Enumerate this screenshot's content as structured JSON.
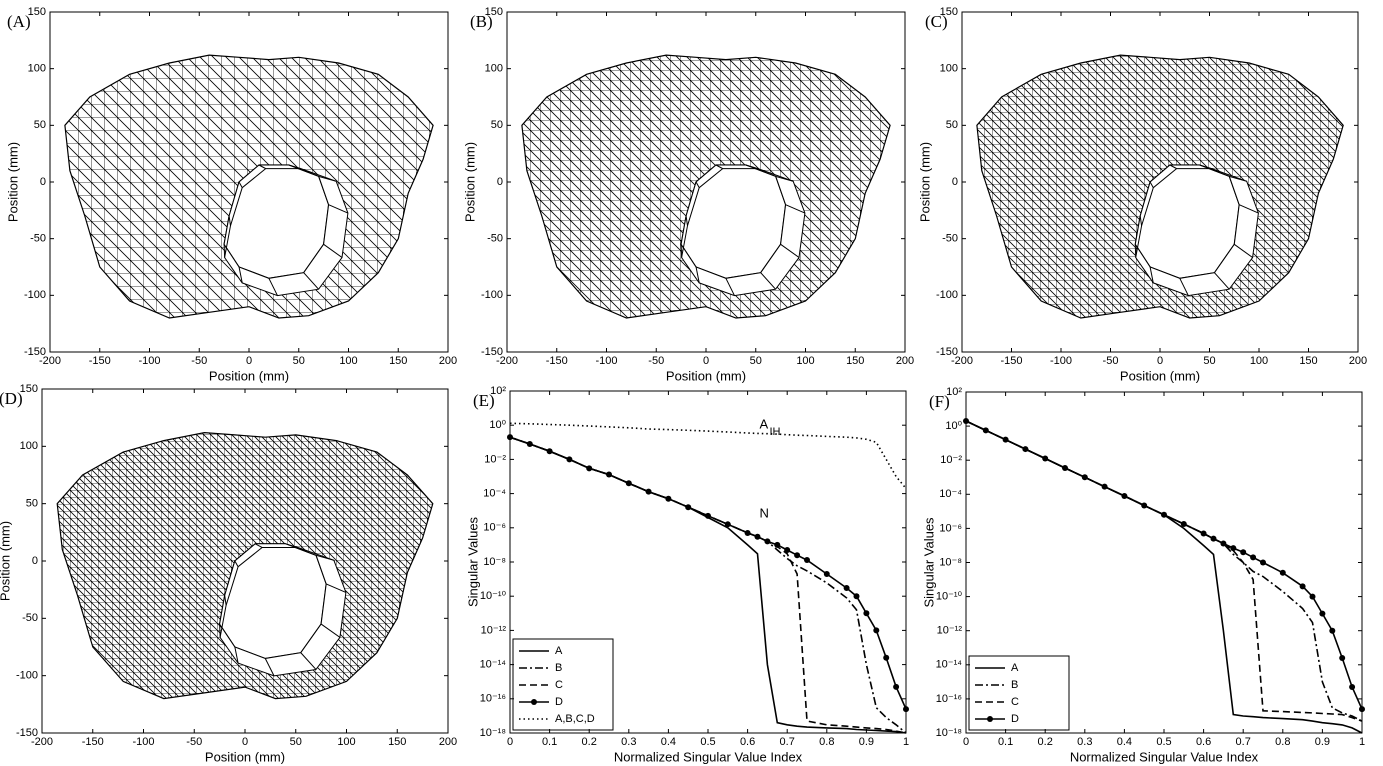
{
  "chart_data": [
    {
      "type": "mesh",
      "panel_label": "(A)",
      "xlabel": "Position (mm)",
      "ylabel": "Position (mm)",
      "xlim": [
        -200,
        200
      ],
      "ylim": [
        -150,
        150
      ],
      "xticks": [
        -200,
        -150,
        -100,
        -50,
        0,
        50,
        100,
        150,
        200
      ],
      "yticks": [
        -150,
        -100,
        -50,
        0,
        50,
        100,
        150
      ]
    },
    {
      "type": "mesh",
      "panel_label": "(B)",
      "xlabel": "Position (mm)",
      "ylabel": "Position (mm)",
      "xlim": [
        -200,
        200
      ],
      "ylim": [
        -150,
        150
      ],
      "xticks": [
        -200,
        -150,
        -100,
        -50,
        0,
        50,
        100,
        150,
        200
      ],
      "yticks": [
        -150,
        -100,
        -50,
        0,
        50,
        100,
        150
      ]
    },
    {
      "type": "mesh",
      "panel_label": "(C)",
      "xlabel": "Position (mm)",
      "ylabel": "Position (mm)",
      "xlim": [
        -200,
        200
      ],
      "ylim": [
        -150,
        150
      ],
      "xticks": [
        -200,
        -150,
        -100,
        -50,
        0,
        50,
        100,
        150,
        200
      ],
      "yticks": [
        -150,
        -100,
        -50,
        0,
        50,
        100,
        150
      ]
    },
    {
      "type": "mesh",
      "panel_label": "(D)",
      "xlabel": "Position (mm)",
      "ylabel": "Position (mm)",
      "xlim": [
        -200,
        200
      ],
      "ylim": [
        -150,
        150
      ],
      "xticks": [
        -200,
        -150,
        -100,
        -50,
        0,
        50,
        100,
        150,
        200
      ],
      "yticks": [
        -150,
        -100,
        -50,
        0,
        50,
        100,
        150
      ]
    },
    {
      "type": "line",
      "panel_label": "(E)",
      "xlabel": "Normalized Singular Value Index",
      "ylabel": "Singular Values",
      "log_y": true,
      "legend": "lower left",
      "xlim": [
        0,
        1
      ],
      "ylim": [
        1e-18,
        100
      ],
      "xticks": [
        0,
        0.1,
        0.2,
        0.3,
        0.4,
        0.5,
        0.6,
        0.7,
        0.8,
        0.9,
        1
      ],
      "yticks": [
        {
          "value": 1e-18,
          "label": "10⁻¹⁸"
        },
        {
          "value": 1e-16,
          "label": "10⁻¹⁶"
        },
        {
          "value": 1e-14,
          "label": "10⁻¹⁴"
        },
        {
          "value": 1e-12,
          "label": "10⁻¹²"
        },
        {
          "value": 1e-10,
          "label": "10⁻¹⁰"
        },
        {
          "value": 1e-08,
          "label": "10⁻⁸"
        },
        {
          "value": 1e-06,
          "label": "10⁻⁶"
        },
        {
          "value": 0.0001,
          "label": "10⁻⁴"
        },
        {
          "value": 0.01,
          "label": "10⁻²"
        },
        {
          "value": 1,
          "label": "10⁰"
        },
        {
          "value": 100,
          "label": "10²"
        }
      ],
      "annotations": [
        {
          "text": "A",
          "subscript": "IH"
        },
        {
          "text": "N"
        }
      ],
      "x": [
        0,
        0.05,
        0.1,
        0.15,
        0.2,
        0.25,
        0.3,
        0.35,
        0.4,
        0.45,
        0.5,
        0.55,
        0.6,
        0.625,
        0.65,
        0.675,
        0.7,
        0.725,
        0.75,
        0.8,
        0.85,
        0.875,
        0.9,
        0.925,
        0.95,
        0.975,
        1
      ],
      "series": [
        {
          "name": "A",
          "color": "#000000",
          "dash": "solid",
          "values": [
            0.2,
            0.08,
            0.03,
            0.01,
            0.003,
            0.0013,
            0.0004,
            0.00013,
            5e-05,
            1.6e-05,
            4e-06,
            1e-06,
            1e-07,
            3e-08,
            1e-14,
            4e-18,
            3e-18,
            2.5e-18,
            2.2e-18,
            2e-18,
            1.8e-18,
            1.6e-18,
            1.5e-18,
            1.4e-18,
            1.3e-18,
            1.2e-18,
            1e-18
          ]
        },
        {
          "name": "B",
          "color": "#000000",
          "dash": "dashdot",
          "values": [
            0.2,
            0.08,
            0.03,
            0.01,
            0.003,
            0.0013,
            0.0004,
            0.00013,
            5e-05,
            1.6e-05,
            5e-06,
            1.6e-06,
            5e-07,
            3e-07,
            1.6e-07,
            5e-08,
            1.6e-08,
            6e-09,
            3e-09,
            6e-10,
            8e-11,
            1.6e-11,
            1e-14,
            3e-17,
            8e-18,
            3e-18,
            1e-18
          ]
        },
        {
          "name": "C",
          "color": "#000000",
          "dash": "dashed",
          "values": [
            0.2,
            0.08,
            0.03,
            0.01,
            0.003,
            0.0013,
            0.0004,
            0.00013,
            5e-05,
            1.6e-05,
            5e-06,
            1.6e-06,
            5e-07,
            3e-07,
            1.6e-07,
            8e-08,
            3e-08,
            2e-09,
            5e-18,
            3e-18,
            2.5e-18,
            2.2e-18,
            2e-18,
            1.8e-18,
            1.6e-18,
            1.3e-18,
            1e-18
          ]
        },
        {
          "name": "D",
          "color": "#000000",
          "dash": "solid",
          "marker": "circle",
          "values": [
            0.2,
            0.08,
            0.03,
            0.01,
            0.003,
            0.0013,
            0.0004,
            0.00013,
            5e-05,
            1.6e-05,
            5e-06,
            1.6e-06,
            5e-07,
            3e-07,
            1.6e-07,
            1e-07,
            5e-08,
            2.5e-08,
            1.3e-08,
            2e-09,
            3e-10,
            1e-10,
            1e-11,
            1e-12,
            2.5e-14,
            5e-16,
            2.5e-17
          ]
        },
        {
          "name": "A,B,C,D",
          "color": "#000000",
          "dash": "dotted",
          "values": [
            1.3,
            1.2,
            1.1,
            1,
            0.9,
            0.8,
            0.7,
            0.6,
            0.55,
            0.5,
            0.45,
            0.4,
            0.35,
            0.33,
            0.32,
            0.3,
            0.28,
            0.26,
            0.25,
            0.22,
            0.2,
            0.18,
            0.15,
            0.1,
            0.01,
            0.001,
            0.0002
          ]
        }
      ]
    },
    {
      "type": "line",
      "panel_label": "(F)",
      "xlabel": "Normalized Singular Value Index",
      "ylabel": "Singular Values",
      "log_y": true,
      "legend": "lower left",
      "xlim": [
        0,
        1
      ],
      "ylim": [
        1e-18,
        100
      ],
      "xticks": [
        0,
        0.1,
        0.2,
        0.3,
        0.4,
        0.5,
        0.6,
        0.7,
        0.8,
        0.9,
        1
      ],
      "yticks": [
        {
          "value": 1e-18,
          "label": "10⁻¹⁸"
        },
        {
          "value": 1e-16,
          "label": "10⁻¹⁶"
        },
        {
          "value": 1e-14,
          "label": "10⁻¹⁴"
        },
        {
          "value": 1e-12,
          "label": "10⁻¹²"
        },
        {
          "value": 1e-10,
          "label": "10⁻¹⁰"
        },
        {
          "value": 1e-08,
          "label": "10⁻⁸"
        },
        {
          "value": 1e-06,
          "label": "10⁻⁶"
        },
        {
          "value": 0.0001,
          "label": "10⁻⁴"
        },
        {
          "value": 0.01,
          "label": "10⁻²"
        },
        {
          "value": 1,
          "label": "10⁰"
        },
        {
          "value": 100,
          "label": "10²"
        }
      ],
      "x": [
        0,
        0.05,
        0.1,
        0.15,
        0.2,
        0.25,
        0.3,
        0.35,
        0.4,
        0.45,
        0.5,
        0.55,
        0.6,
        0.625,
        0.65,
        0.675,
        0.7,
        0.725,
        0.75,
        0.8,
        0.85,
        0.875,
        0.9,
        0.925,
        0.95,
        0.975,
        1
      ],
      "series": [
        {
          "name": "A",
          "color": "#000000",
          "dash": "solid",
          "values": [
            2,
            0.56,
            0.16,
            0.045,
            0.0126,
            0.0035,
            0.001,
            0.00028,
            8e-05,
            2.2e-05,
            6.3e-06,
            1e-06,
            1e-07,
            3e-08,
            1e-12,
            1.2e-17,
            1e-17,
            9e-18,
            8e-18,
            7e-18,
            6e-18,
            5e-18,
            4e-18,
            3.5e-18,
            3e-18,
            2e-18,
            1e-18
          ]
        },
        {
          "name": "B",
          "color": "#000000",
          "dash": "dashdot",
          "values": [
            2,
            0.56,
            0.16,
            0.045,
            0.0126,
            0.0035,
            0.001,
            0.00028,
            8e-05,
            2.2e-05,
            6.3e-06,
            1.8e-06,
            5e-07,
            2.5e-07,
            1.3e-07,
            3e-08,
            1e-08,
            3e-09,
            1.5e-09,
            2e-10,
            2e-11,
            3e-12,
            1e-15,
            3e-17,
            1.5e-17,
            1e-17,
            5e-18
          ]
        },
        {
          "name": "C",
          "color": "#000000",
          "dash": "dashed",
          "values": [
            2,
            0.56,
            0.16,
            0.045,
            0.0126,
            0.0035,
            0.001,
            0.00028,
            8e-05,
            2.2e-05,
            6.3e-06,
            1.8e-06,
            5e-07,
            2.5e-07,
            1.3e-07,
            5e-08,
            1e-08,
            1e-09,
            2e-17,
            1.8e-17,
            1.6e-17,
            1.5e-17,
            1.4e-17,
            1.3e-17,
            1.2e-17,
            8e-18,
            5e-18
          ]
        },
        {
          "name": "D",
          "color": "#000000",
          "dash": "solid",
          "marker": "circle",
          "values": [
            2,
            0.56,
            0.16,
            0.045,
            0.0126,
            0.0035,
            0.001,
            0.00028,
            8e-05,
            2.2e-05,
            6.3e-06,
            1.8e-06,
            5e-07,
            2.5e-07,
            1.3e-07,
            7e-08,
            4e-08,
            2e-08,
            1e-08,
            2.5e-09,
            4e-10,
            1e-10,
            1e-11,
            1e-12,
            2.5e-14,
            5e-16,
            2.5e-17
          ]
        }
      ]
    }
  ]
}
